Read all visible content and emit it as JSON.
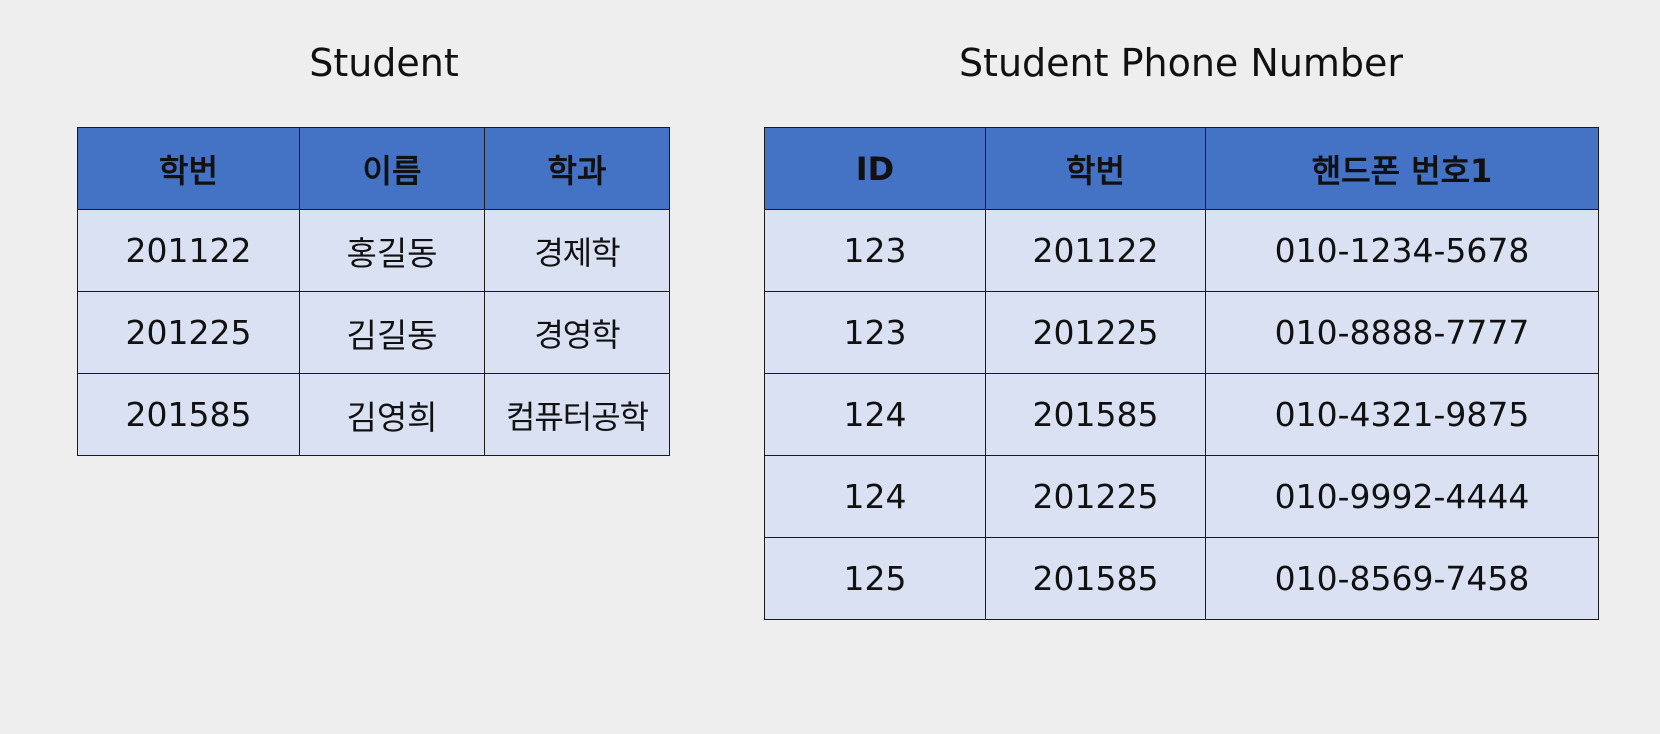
{
  "colors": {
    "background": "#eeeeee",
    "header_fill": "#4472c4",
    "cell_fill": "#d9e1f2",
    "border": "#1a1a1a"
  },
  "student_table": {
    "title": "Student",
    "headers": [
      "학번",
      "이름",
      "학과"
    ],
    "rows": [
      [
        "201122",
        "홍길동",
        "경제학"
      ],
      [
        "201225",
        "김길동",
        "경영학"
      ],
      [
        "201585",
        "김영희",
        "컴퓨터공학"
      ]
    ]
  },
  "phone_table": {
    "title": "Student Phone Number",
    "headers": [
      "ID",
      "학번",
      "핸드폰 번호1"
    ],
    "rows": [
      [
        "123",
        "201122",
        "010-1234-5678"
      ],
      [
        "123",
        "201225",
        "010-8888-7777"
      ],
      [
        "124",
        "201585",
        "010-4321-9875"
      ],
      [
        "124",
        "201225",
        "010-9992-4444"
      ],
      [
        "125",
        "201585",
        "010-8569-7458"
      ]
    ]
  }
}
